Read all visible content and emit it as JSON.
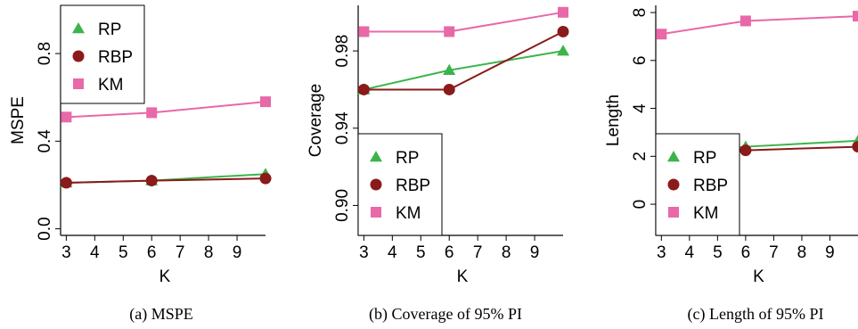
{
  "colors": {
    "RP": "#3cb44b",
    "RBP": "#8b1a1a",
    "KM": "#e868a8",
    "axis": "#000000"
  },
  "legend_entries": [
    "RP",
    "RBP",
    "KM"
  ],
  "chart_data": [
    {
      "type": "line",
      "xlabel": "K",
      "ylabel": "MSPE",
      "caption": "(a)  MSPE",
      "x": [
        3,
        6,
        10
      ],
      "xticks": [
        3,
        4,
        5,
        6,
        7,
        8,
        9
      ],
      "yticks": [
        0.0,
        0.4,
        0.8
      ],
      "ytick_labels": [
        "0.0",
        "0.4",
        "0.8"
      ],
      "ylim": [
        -0.03,
        1.02
      ],
      "xlim": [
        2.8,
        10
      ],
      "legend": "top-left",
      "series": [
        {
          "name": "RP",
          "marker": "triangle",
          "values": [
            0.21,
            0.22,
            0.25
          ]
        },
        {
          "name": "RBP",
          "marker": "circle",
          "values": [
            0.21,
            0.22,
            0.23
          ]
        },
        {
          "name": "KM",
          "marker": "square",
          "values": [
            0.51,
            0.53,
            0.58
          ]
        }
      ]
    },
    {
      "type": "line",
      "xlabel": "K",
      "ylabel": "Coverage",
      "caption": "(b)  Coverage of 95% PI",
      "x": [
        3,
        6,
        10
      ],
      "xticks": [
        3,
        4,
        5,
        6,
        7,
        8,
        9
      ],
      "yticks": [
        0.9,
        0.94,
        0.98
      ],
      "ytick_labels": [
        "0.90",
        "0.94",
        "0.98"
      ],
      "ylim": [
        0.8845,
        1.0036
      ],
      "xlim": [
        2.8,
        10
      ],
      "legend": "bottom-left",
      "series": [
        {
          "name": "RP",
          "marker": "triangle",
          "values": [
            0.96,
            0.97,
            0.98
          ]
        },
        {
          "name": "RBP",
          "marker": "circle",
          "values": [
            0.96,
            0.96,
            0.99
          ]
        },
        {
          "name": "KM",
          "marker": "square",
          "values": [
            0.99,
            0.99,
            1.0
          ]
        }
      ]
    },
    {
      "type": "line",
      "xlabel": "K",
      "ylabel": "Length",
      "caption": "(c)  Length of 95% PI",
      "x": [
        3,
        6,
        10
      ],
      "xticks": [
        3,
        4,
        5,
        6,
        7,
        8,
        9
      ],
      "yticks": [
        0,
        2,
        4,
        6,
        8
      ],
      "ytick_labels": [
        "0",
        "2",
        "4",
        "6",
        "8"
      ],
      "ylim": [
        -1.3,
        8.3
      ],
      "xlim": [
        2.8,
        10
      ],
      "legend": "bottom-left",
      "series": [
        {
          "name": "RP",
          "marker": "triangle",
          "values": [
            2.1,
            2.4,
            2.65
          ]
        },
        {
          "name": "RBP",
          "marker": "circle",
          "values": [
            2.1,
            2.25,
            2.4
          ]
        },
        {
          "name": "KM",
          "marker": "square",
          "values": [
            7.1,
            7.65,
            7.85
          ]
        }
      ]
    }
  ]
}
